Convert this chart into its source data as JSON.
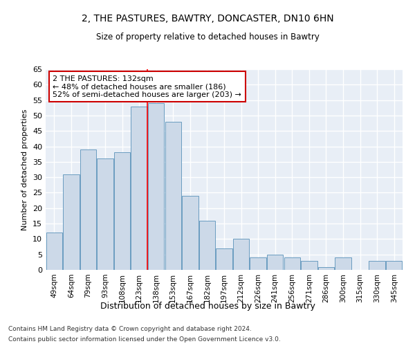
{
  "title1": "2, THE PASTURES, BAWTRY, DONCASTER, DN10 6HN",
  "title2": "Size of property relative to detached houses in Bawtry",
  "xlabel": "Distribution of detached houses by size in Bawtry",
  "ylabel": "Number of detached properties",
  "categories": [
    "49sqm",
    "64sqm",
    "79sqm",
    "93sqm",
    "108sqm",
    "123sqm",
    "138sqm",
    "153sqm",
    "167sqm",
    "182sqm",
    "197sqm",
    "212sqm",
    "226sqm",
    "241sqm",
    "256sqm",
    "271sqm",
    "286sqm",
    "300sqm",
    "315sqm",
    "330sqm",
    "345sqm"
  ],
  "values": [
    12,
    31,
    39,
    36,
    38,
    53,
    54,
    48,
    24,
    16,
    7,
    10,
    4,
    5,
    4,
    3,
    1,
    4,
    0,
    3,
    3
  ],
  "bar_color": "#ccd9e8",
  "bar_edgecolor": "#6a9cc0",
  "background_color": "#e8eef6",
  "grid_color": "#ffffff",
  "annotation_box_color": "#ffffff",
  "annotation_box_edgecolor": "#cc0000",
  "annotation_text_line1": "2 THE PASTURES: 132sqm",
  "annotation_text_line2": "← 48% of detached houses are smaller (186)",
  "annotation_text_line3": "52% of semi-detached houses are larger (203) →",
  "red_line_x": 5.5,
  "ylim": [
    0,
    65
  ],
  "yticks": [
    0,
    5,
    10,
    15,
    20,
    25,
    30,
    35,
    40,
    45,
    50,
    55,
    60,
    65
  ],
  "footer_line1": "Contains HM Land Registry data © Crown copyright and database right 2024.",
  "footer_line2": "Contains public sector information licensed under the Open Government Licence v3.0."
}
